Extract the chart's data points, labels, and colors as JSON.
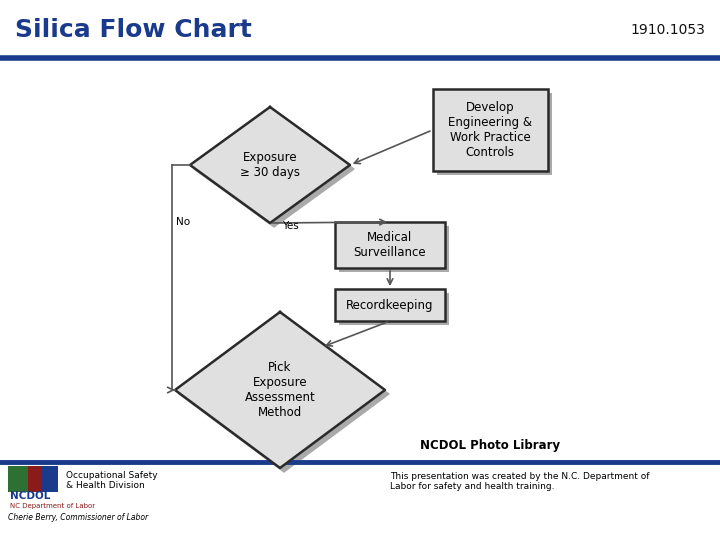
{
  "title": "Silica Flow Chart",
  "title_color": "#1a3a8c",
  "title_fontsize": 18,
  "code_text": "1910.1053",
  "code_fontsize": 10,
  "bg_color": "#ffffff",
  "separator_color": "#1a3a8c",
  "footer_line_color": "#1a3a8c",
  "photo_library_text": "NCDOL Photo Library",
  "footer_text": "This presentation was created by the N.C. Department of\nLabor for safety and health training.",
  "ncdol_text": "NCDOL",
  "occ_safety_text": "Occupational Safety\n& Health Division",
  "commissioner_text": "Cherie Berry, Commissioner of Labor",
  "diamond1_text": "Exposure\n≥ 30 days",
  "diamond2_text": "Pick\nExposure\nAssessment\nMethod",
  "box1_text": "Develop\nEngineering &\nWork Practice\nControls",
  "box2_text": "Medical\nSurveillance",
  "box3_text": "Recordkeeping",
  "yes_label": "Yes",
  "no_label": "No",
  "shape_fill": "#e0e0e0",
  "shape_edge": "#2a2a2a",
  "shape_linewidth": 1.8,
  "arrow_color": "#555555",
  "shadow_color": "#aaaaaa"
}
